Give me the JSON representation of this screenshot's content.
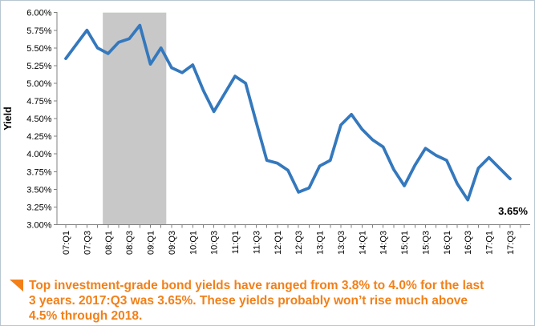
{
  "chart_data": {
    "type": "line",
    "title": "",
    "ylabel": "Yield",
    "categories": [
      "07:Q1",
      "07:Q2",
      "07:Q3",
      "07:Q4",
      "08:Q1",
      "08:Q2",
      "08:Q3",
      "08:Q4",
      "09:Q1",
      "09:Q2",
      "09:Q3",
      "09:Q4",
      "10:Q1",
      "10:Q2",
      "10:Q3",
      "10:Q4",
      "11:Q1",
      "11:Q2",
      "11:Q3",
      "11:Q4",
      "12:Q1",
      "12:Q2",
      "12:Q3",
      "12:Q4",
      "13:Q1",
      "13:Q2",
      "13:Q3",
      "13:Q4",
      "14:Q1",
      "14:Q2",
      "14:Q3",
      "14:Q4",
      "15:Q1",
      "15:Q2",
      "15:Q3",
      "15:Q4",
      "16:Q1",
      "16:Q2",
      "16:Q3",
      "16:Q4",
      "17:Q1",
      "17:Q2",
      "17:Q3"
    ],
    "values": [
      5.35,
      5.55,
      5.75,
      5.5,
      5.42,
      5.58,
      5.63,
      5.82,
      5.27,
      5.5,
      5.22,
      5.15,
      5.26,
      4.9,
      4.6,
      4.85,
      5.1,
      5.0,
      4.45,
      3.91,
      3.87,
      3.77,
      3.46,
      3.52,
      3.83,
      3.91,
      4.41,
      4.56,
      4.35,
      4.2,
      4.1,
      3.78,
      3.55,
      3.84,
      4.08,
      3.98,
      3.91,
      3.58,
      3.35,
      3.8,
      3.95,
      3.8,
      3.65
    ],
    "ylim": [
      3.0,
      6.0
    ],
    "ytick_step": 0.25,
    "ytick_suffix": "%",
    "x_label_every": 2,
    "grid": "off",
    "legend": "none",
    "line_color": "#3478bd",
    "axis_color": "#808080",
    "tick_label_color": "#000000",
    "shaded_region": {
      "from_index": 3.5,
      "to_index": 9.5,
      "color": "#c8c8c8"
    },
    "end_label": {
      "text": "3.65%",
      "color": "#000000"
    }
  },
  "annotation": {
    "marker_icon": "corner-triangle",
    "color": "#f28019",
    "lines": [
      "Top investment-grade bond yields have ranged from 3.8% to 4.0% for the last",
      "3 years. 2017:Q3 was 3.65%. These yields probably won’t rise much above",
      "4.5% through 2018."
    ]
  }
}
